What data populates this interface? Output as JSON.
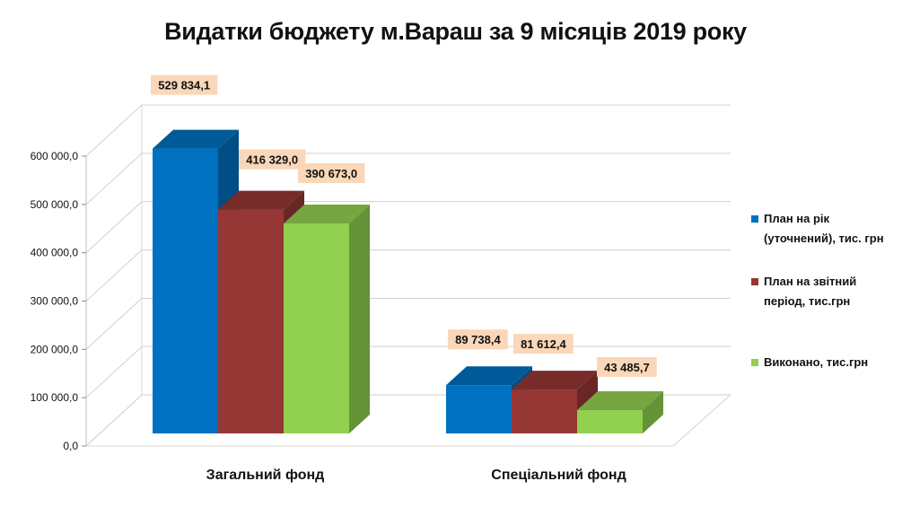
{
  "chart_data": {
    "type": "bar",
    "title": "Видатки бюджету м.Вараш за 9 місяців 2019 року",
    "categories": [
      "Загальний фонд",
      "Спеціальний фонд"
    ],
    "series": [
      {
        "name": "План на рік (уточнений), тис. грн",
        "legend_lines": [
          "План на рік",
          "(уточнений), тис. грн"
        ],
        "values": [
          529834.1,
          89738.4
        ],
        "labels": [
          "529 834,1",
          "89 738,4"
        ],
        "color": "#0070C0"
      },
      {
        "name": "План на звітний період, тис.грн",
        "legend_lines": [
          "План на звітний",
          "період, тис.грн"
        ],
        "values": [
          416329.0,
          81612.4
        ],
        "labels": [
          "416 329,0",
          "81 612,4"
        ],
        "color": "#953735"
      },
      {
        "name": "Виконано, тис.грн",
        "legend_lines": [
          "Виконано, тис.грн"
        ],
        "values": [
          390673.0,
          43485.7
        ],
        "labels": [
          "390 673,0",
          "43 485,7"
        ],
        "color": "#92D050"
      }
    ],
    "ylim": [
      0,
      600000
    ],
    "yticks": [
      {
        "value": 0,
        "label": "0,0"
      },
      {
        "value": 100000,
        "label": "100 000,0"
      },
      {
        "value": 200000,
        "label": "200 000,0"
      },
      {
        "value": 300000,
        "label": "300 000,0"
      },
      {
        "value": 400000,
        "label": "400 000,0"
      },
      {
        "value": 500000,
        "label": "500 000,0"
      },
      {
        "value": 600000,
        "label": "600 000,0"
      }
    ],
    "grid": true,
    "legend_position": "right",
    "label_background": "#FAD7B8",
    "style": "3d-clustered-bar"
  }
}
